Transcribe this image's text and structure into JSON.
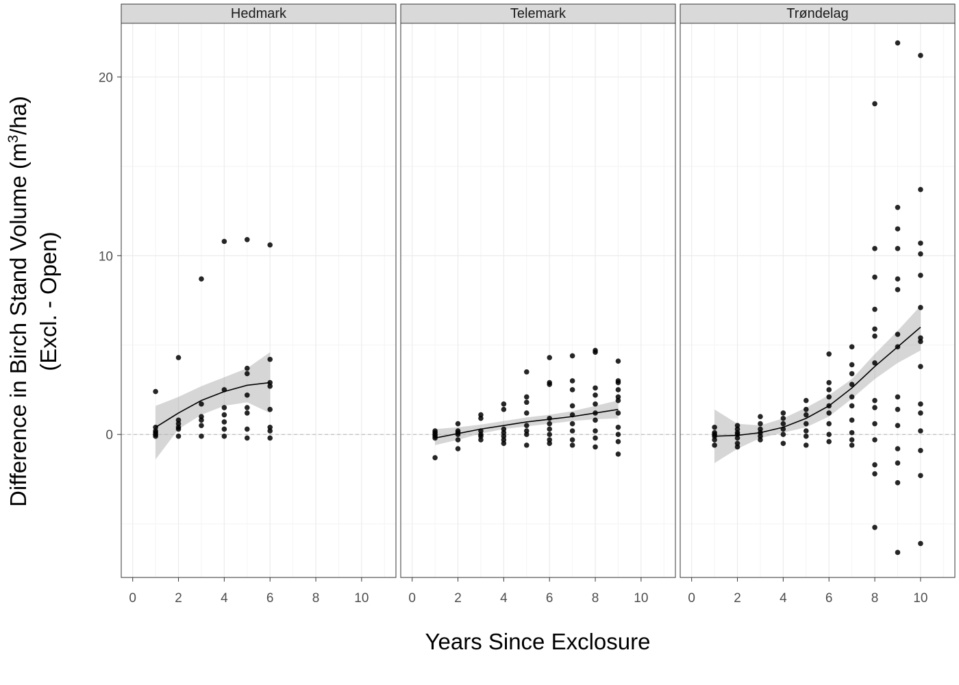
{
  "chart_data": {
    "type": "scatter",
    "xlabel": "Years Since Exclosure",
    "ylabel_line1_prefix": "Difference in Birch Stand Volume  (m",
    "ylabel_line1_sup": "3",
    "ylabel_line1_suffix": "/ha)",
    "ylabel_line2": "(Excl. - Open)",
    "xlim": [
      -0.5,
      11.5
    ],
    "ylim": [
      -8,
      23
    ],
    "x_ticks": [
      0,
      2,
      4,
      6,
      8,
      10
    ],
    "x_tick_labels": [
      "0",
      "2",
      "4",
      "6",
      "8",
      "10"
    ],
    "y_ticks": [
      0,
      10,
      20
    ],
    "y_tick_labels": [
      "0",
      "10",
      "20"
    ],
    "grid": true,
    "reference_line_y": 0,
    "panels": [
      {
        "name": "Hedmark",
        "points": [
          [
            1,
            2.4
          ],
          [
            1,
            0.4
          ],
          [
            1,
            0.2
          ],
          [
            1,
            0.1
          ],
          [
            1,
            0
          ],
          [
            1,
            -0.1
          ],
          [
            2,
            4.3
          ],
          [
            2,
            0.8
          ],
          [
            2,
            0.6
          ],
          [
            2,
            0.4
          ],
          [
            2,
            0.3
          ],
          [
            2,
            -0.1
          ],
          [
            3,
            8.7
          ],
          [
            3,
            1.7
          ],
          [
            3,
            1.0
          ],
          [
            3,
            0.8
          ],
          [
            3,
            0.5
          ],
          [
            3,
            -0.1
          ],
          [
            4,
            10.8
          ],
          [
            4,
            2.5
          ],
          [
            4,
            1.5
          ],
          [
            4,
            1.1
          ],
          [
            4,
            0.7
          ],
          [
            4,
            0.3
          ],
          [
            4,
            -0.1
          ],
          [
            5,
            10.9
          ],
          [
            5,
            3.7
          ],
          [
            5,
            3.4
          ],
          [
            5,
            2.2
          ],
          [
            5,
            1.5
          ],
          [
            5,
            1.2
          ],
          [
            5,
            0.3
          ],
          [
            5,
            -0.2
          ],
          [
            6,
            10.6
          ],
          [
            6,
            4.2
          ],
          [
            6,
            2.9
          ],
          [
            6,
            2.7
          ],
          [
            6,
            1.4
          ],
          [
            6,
            0.4
          ],
          [
            6,
            0.2
          ],
          [
            6,
            -0.2
          ]
        ],
        "smooth": [
          [
            1,
            0.4
          ],
          [
            2,
            1.2
          ],
          [
            3,
            1.9
          ],
          [
            4,
            2.4
          ],
          [
            5,
            2.75
          ],
          [
            6,
            2.9
          ]
        ],
        "band_upper": [
          [
            1,
            1.6
          ],
          [
            2,
            2.1
          ],
          [
            3,
            2.7
          ],
          [
            4,
            3.2
          ],
          [
            5,
            3.7
          ],
          [
            6,
            4.6
          ]
        ],
        "band_lower": [
          [
            1,
            -1.4
          ],
          [
            2,
            0.3
          ],
          [
            3,
            1.1
          ],
          [
            4,
            1.6
          ],
          [
            5,
            1.8
          ],
          [
            6,
            1.2
          ]
        ]
      },
      {
        "name": "Telemark",
        "points": [
          [
            1,
            0.2
          ],
          [
            1,
            0.1
          ],
          [
            1,
            0
          ],
          [
            1,
            -0.1
          ],
          [
            1,
            -0.2
          ],
          [
            1,
            -1.3
          ],
          [
            2,
            0.6
          ],
          [
            2,
            0.2
          ],
          [
            2,
            0.1
          ],
          [
            2,
            0
          ],
          [
            2,
            -0.3
          ],
          [
            2,
            -0.8
          ],
          [
            3,
            1.1
          ],
          [
            3,
            0.9
          ],
          [
            3,
            0.2
          ],
          [
            3,
            0
          ],
          [
            3,
            -0.1
          ],
          [
            3,
            -0.3
          ],
          [
            4,
            1.7
          ],
          [
            4,
            1.4
          ],
          [
            4,
            0.3
          ],
          [
            4,
            0.1
          ],
          [
            4,
            -0.1
          ],
          [
            4,
            -0.3
          ],
          [
            4,
            -0.5
          ],
          [
            5,
            3.5
          ],
          [
            5,
            2.1
          ],
          [
            5,
            1.8
          ],
          [
            5,
            1.2
          ],
          [
            5,
            0.5
          ],
          [
            5,
            0.2
          ],
          [
            5,
            0
          ],
          [
            5,
            -0.6
          ],
          [
            6,
            4.3
          ],
          [
            6,
            2.9
          ],
          [
            6,
            2.8
          ],
          [
            6,
            0.9
          ],
          [
            6,
            0.6
          ],
          [
            6,
            0.3
          ],
          [
            6,
            0
          ],
          [
            6,
            -0.3
          ],
          [
            6,
            -0.5
          ],
          [
            7,
            4.4
          ],
          [
            7,
            3.0
          ],
          [
            7,
            2.5
          ],
          [
            7,
            1.6
          ],
          [
            7,
            1.1
          ],
          [
            7,
            0.6
          ],
          [
            7,
            0.2
          ],
          [
            7,
            -0.3
          ],
          [
            7,
            -0.6
          ],
          [
            8,
            4.7
          ],
          [
            8,
            4.6
          ],
          [
            8,
            2.6
          ],
          [
            8,
            2.2
          ],
          [
            8,
            1.7
          ],
          [
            8,
            1.2
          ],
          [
            8,
            0.8
          ],
          [
            8,
            0.2
          ],
          [
            8,
            -0.2
          ],
          [
            8,
            -0.7
          ],
          [
            9,
            4.1
          ],
          [
            9,
            3.0
          ],
          [
            9,
            2.9
          ],
          [
            9,
            2.5
          ],
          [
            9,
            2.1
          ],
          [
            9,
            1.9
          ],
          [
            9,
            1.2
          ],
          [
            9,
            0.4
          ],
          [
            9,
            0
          ],
          [
            9,
            -0.4
          ],
          [
            9,
            -1.1
          ]
        ],
        "smooth": [
          [
            1,
            -0.2
          ],
          [
            2,
            0.05
          ],
          [
            3,
            0.3
          ],
          [
            4,
            0.5
          ],
          [
            5,
            0.7
          ],
          [
            6,
            0.85
          ],
          [
            7,
            1.0
          ],
          [
            8,
            1.2
          ],
          [
            9,
            1.4
          ]
        ],
        "band_upper": [
          [
            1,
            0.3
          ],
          [
            2,
            0.4
          ],
          [
            3,
            0.55
          ],
          [
            4,
            0.75
          ],
          [
            5,
            0.95
          ],
          [
            6,
            1.1
          ],
          [
            7,
            1.3
          ],
          [
            8,
            1.6
          ],
          [
            9,
            1.9
          ]
        ],
        "band_lower": [
          [
            1,
            -0.6
          ],
          [
            2,
            -0.3
          ],
          [
            3,
            0.05
          ],
          [
            4,
            0.3
          ],
          [
            5,
            0.45
          ],
          [
            6,
            0.6
          ],
          [
            7,
            0.75
          ],
          [
            8,
            0.85
          ],
          [
            9,
            0.9
          ]
        ]
      },
      {
        "name": "Trøndelag",
        "points": [
          [
            1,
            0.4
          ],
          [
            1,
            0.1
          ],
          [
            1,
            0
          ],
          [
            1,
            -0.1
          ],
          [
            1,
            -0.3
          ],
          [
            1,
            -0.6
          ],
          [
            2,
            0.5
          ],
          [
            2,
            0.3
          ],
          [
            2,
            0.1
          ],
          [
            2,
            0
          ],
          [
            2,
            -0.2
          ],
          [
            2,
            -0.5
          ],
          [
            2,
            -0.7
          ],
          [
            3,
            1.0
          ],
          [
            3,
            0.6
          ],
          [
            3,
            0.3
          ],
          [
            3,
            0.1
          ],
          [
            3,
            -0.1
          ],
          [
            3,
            -0.3
          ],
          [
            4,
            1.2
          ],
          [
            4,
            0.9
          ],
          [
            4,
            0.6
          ],
          [
            4,
            0.3
          ],
          [
            4,
            0
          ],
          [
            4,
            -0.5
          ],
          [
            5,
            1.9
          ],
          [
            5,
            1.4
          ],
          [
            5,
            1.1
          ],
          [
            5,
            0.6
          ],
          [
            5,
            0.2
          ],
          [
            5,
            -0.1
          ],
          [
            5,
            -0.6
          ],
          [
            6,
            4.5
          ],
          [
            6,
            2.9
          ],
          [
            6,
            2.5
          ],
          [
            6,
            2.1
          ],
          [
            6,
            1.6
          ],
          [
            6,
            1.2
          ],
          [
            6,
            0.6
          ],
          [
            6,
            0
          ],
          [
            6,
            -0.4
          ],
          [
            7,
            4.9
          ],
          [
            7,
            3.9
          ],
          [
            7,
            3.4
          ],
          [
            7,
            2.8
          ],
          [
            7,
            2.1
          ],
          [
            7,
            1.6
          ],
          [
            7,
            0.8
          ],
          [
            7,
            0.1
          ],
          [
            7,
            -0.3
          ],
          [
            7,
            -0.6
          ],
          [
            8,
            18.5
          ],
          [
            8,
            10.4
          ],
          [
            8,
            8.8
          ],
          [
            8,
            7.0
          ],
          [
            8,
            5.9
          ],
          [
            8,
            5.5
          ],
          [
            8,
            4.0
          ],
          [
            8,
            1.9
          ],
          [
            8,
            1.5
          ],
          [
            8,
            0.6
          ],
          [
            8,
            -0.3
          ],
          [
            8,
            -1.7
          ],
          [
            8,
            -2.2
          ],
          [
            8,
            -5.2
          ],
          [
            9,
            21.9
          ],
          [
            9,
            12.7
          ],
          [
            9,
            11.5
          ],
          [
            9,
            10.4
          ],
          [
            9,
            8.7
          ],
          [
            9,
            8.1
          ],
          [
            9,
            5.6
          ],
          [
            9,
            4.9
          ],
          [
            9,
            2.1
          ],
          [
            9,
            1.4
          ],
          [
            9,
            0.5
          ],
          [
            9,
            -0.8
          ],
          [
            9,
            -1.6
          ],
          [
            9,
            -2.7
          ],
          [
            9,
            -6.6
          ],
          [
            10,
            21.2
          ],
          [
            10,
            13.7
          ],
          [
            10,
            10.7
          ],
          [
            10,
            10.1
          ],
          [
            10,
            8.9
          ],
          [
            10,
            7.1
          ],
          [
            10,
            5.4
          ],
          [
            10,
            5.2
          ],
          [
            10,
            3.8
          ],
          [
            10,
            1.7
          ],
          [
            10,
            1.2
          ],
          [
            10,
            0.2
          ],
          [
            10,
            -0.9
          ],
          [
            10,
            -2.3
          ],
          [
            10,
            -6.1
          ]
        ],
        "smooth": [
          [
            1,
            -0.1
          ],
          [
            2,
            -0.05
          ],
          [
            3,
            0.1
          ],
          [
            4,
            0.4
          ],
          [
            5,
            0.9
          ],
          [
            6,
            1.6
          ],
          [
            7,
            2.6
          ],
          [
            8,
            3.8
          ],
          [
            9,
            4.9
          ],
          [
            10,
            6.0
          ]
        ],
        "band_upper": [
          [
            1,
            1.4
          ],
          [
            2,
            0.6
          ],
          [
            3,
            0.5
          ],
          [
            4,
            0.9
          ],
          [
            5,
            1.5
          ],
          [
            6,
            2.2
          ],
          [
            7,
            3.1
          ],
          [
            8,
            4.5
          ],
          [
            9,
            5.8
          ],
          [
            10,
            7.2
          ]
        ],
        "band_lower": [
          [
            1,
            -1.6
          ],
          [
            2,
            -0.8
          ],
          [
            3,
            -0.2
          ],
          [
            4,
            0.1
          ],
          [
            5,
            0.4
          ],
          [
            6,
            1.0
          ],
          [
            7,
            2.0
          ],
          [
            8,
            3.1
          ],
          [
            9,
            4.0
          ],
          [
            10,
            4.7
          ]
        ]
      }
    ]
  }
}
